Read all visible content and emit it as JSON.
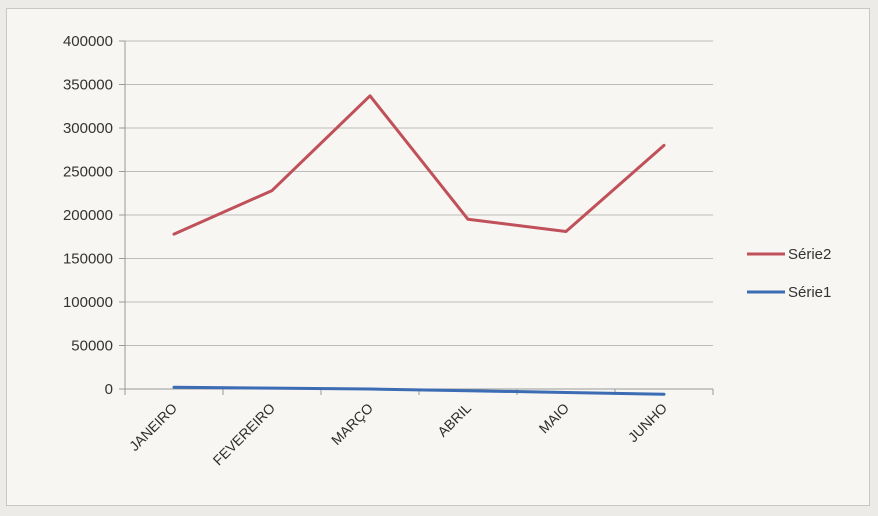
{
  "chart_data": {
    "type": "line",
    "categories": [
      "JANEIRO",
      "FEVEREIRO",
      "MARÇO",
      "ABRIL",
      "MAIO",
      "JUNHO"
    ],
    "series": [
      {
        "name": "Série2",
        "color": "#c0505a",
        "values": [
          178000,
          228000,
          337000,
          195000,
          181000,
          280000
        ]
      },
      {
        "name": "Série1",
        "color": "#3c6cb4",
        "values": [
          2000,
          1000,
          0,
          -2000,
          -4000,
          -6000
        ]
      }
    ],
    "ylim": [
      0,
      400000
    ],
    "yticks": [
      "400000",
      "350000",
      "300000",
      "250000",
      "200000",
      "150000",
      "100000",
      "50000",
      "0"
    ],
    "ytick_values": [
      400000,
      350000,
      300000,
      250000,
      200000,
      150000,
      100000,
      50000,
      0
    ],
    "grid": true,
    "legend_position": "right"
  }
}
